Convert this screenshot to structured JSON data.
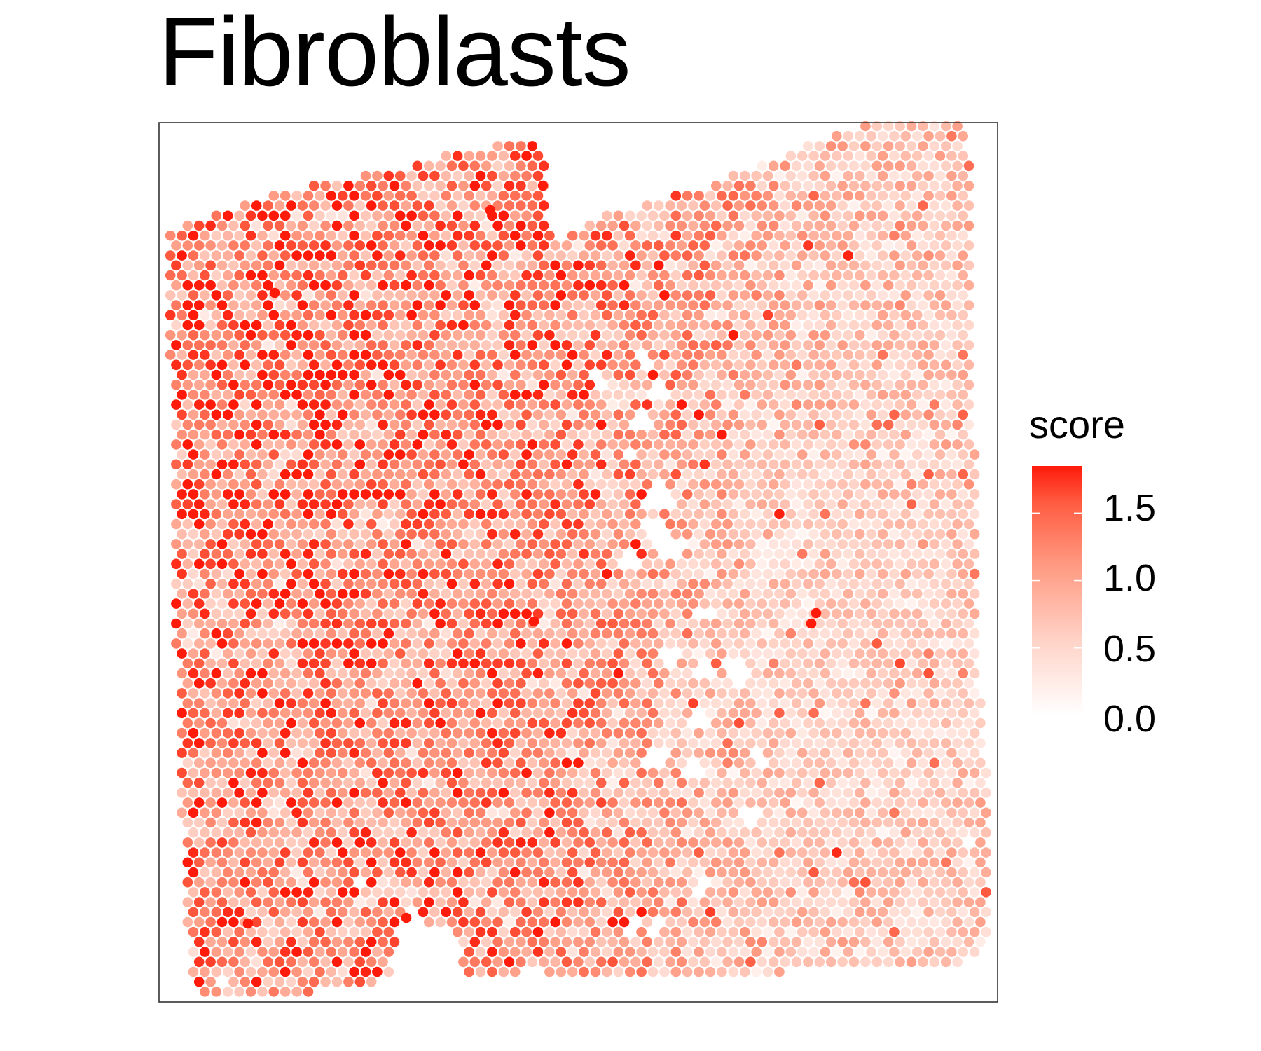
{
  "title": "Fibroblasts",
  "chart_data": {
    "type": "scatter",
    "subtype": "spatial spot map",
    "title": "Fibroblasts",
    "xlabel": "",
    "ylabel": "",
    "axes_visible": false,
    "grid": false,
    "panel_border": true,
    "color_variable": "score",
    "color_scale": {
      "low": "#ffffff",
      "high": "#ff0000",
      "domain": [
        0,
        1.85
      ],
      "breaks": [
        0.0,
        0.5,
        1.0,
        1.5
      ],
      "break_labels": [
        "0.0",
        "0.5",
        "1.0",
        "1.5"
      ]
    },
    "legend": {
      "title": "score",
      "position": "right"
    },
    "region_mean_scores": {
      "left_half": 1.0,
      "right_half": 0.55,
      "top_left_corner": 1.15
    },
    "score_range": [
      0,
      1.85
    ]
  },
  "legend": {
    "title": "score",
    "labels": [
      "1.5",
      "1.0",
      "0.5",
      "0.0"
    ]
  },
  "colors": {
    "low": "#ffffff",
    "high": "#ff0000",
    "border": "#333333"
  }
}
